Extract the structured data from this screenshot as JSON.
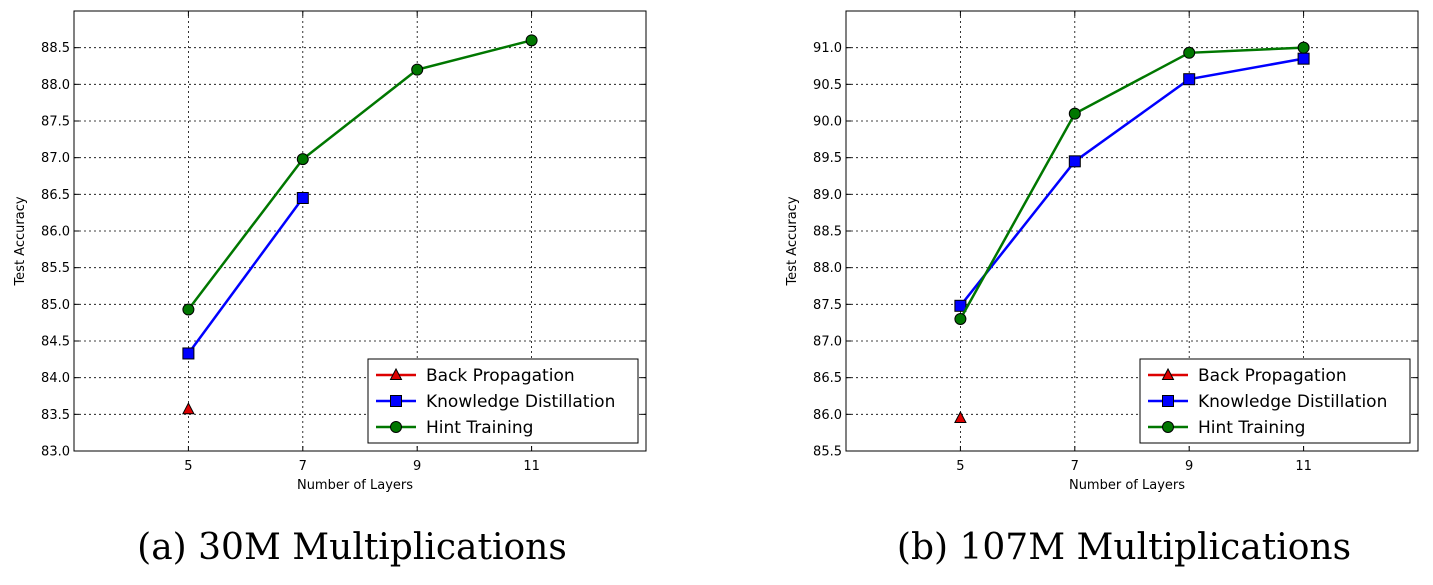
{
  "chart_data": [
    {
      "type": "line",
      "caption": "(a) 30M Multiplications",
      "xlabel": "Number of Layers",
      "ylabel": "Test Accuracy",
      "x_ticks": [
        5,
        7,
        9,
        11
      ],
      "xlim": [
        3,
        13
      ],
      "ylim": [
        83.0,
        89.0
      ],
      "y_ticks": [
        83.0,
        83.5,
        84.0,
        84.5,
        85.0,
        85.5,
        86.0,
        86.5,
        87.0,
        87.5,
        88.0,
        88.5
      ],
      "y_tick_labels": [
        "83.0",
        "83.5",
        "84.0",
        "84.5",
        "85.0",
        "85.5",
        "86.0",
        "86.5",
        "87.0",
        "87.5",
        "88.0",
        "88.5"
      ],
      "grid": true,
      "legend_position": "bottom-right",
      "series": [
        {
          "name": "Back Propagation",
          "color": "#dd0000",
          "marker": "triangle",
          "x": [
            5
          ],
          "y": [
            83.57
          ]
        },
        {
          "name": "Knowledge Distillation",
          "color": "#0000ff",
          "marker": "square",
          "x": [
            5,
            7
          ],
          "y": [
            84.33,
            86.45
          ]
        },
        {
          "name": "Hint Training",
          "color": "#007700",
          "marker": "circle",
          "x": [
            5,
            7,
            9,
            11
          ],
          "y": [
            84.93,
            86.98,
            88.2,
            88.6
          ]
        }
      ]
    },
    {
      "type": "line",
      "caption": "(b) 107M Multiplications",
      "xlabel": "Number of Layers",
      "ylabel": "Test Accuracy",
      "x_ticks": [
        5,
        7,
        9,
        11
      ],
      "xlim": [
        3,
        13
      ],
      "ylim": [
        85.5,
        91.5
      ],
      "y_ticks": [
        85.5,
        86.0,
        86.5,
        87.0,
        87.5,
        88.0,
        88.5,
        89.0,
        89.5,
        90.0,
        90.5,
        91.0
      ],
      "y_tick_labels": [
        "85.5",
        "86.0",
        "86.5",
        "87.0",
        "87.5",
        "88.0",
        "88.5",
        "89.0",
        "89.5",
        "90.0",
        "90.5",
        "91.0"
      ],
      "grid": true,
      "legend_position": "bottom-right",
      "series": [
        {
          "name": "Back Propagation",
          "color": "#dd0000",
          "marker": "triangle",
          "x": [
            5
          ],
          "y": [
            85.95
          ]
        },
        {
          "name": "Knowledge Distillation",
          "color": "#0000ff",
          "marker": "square",
          "x": [
            5,
            7,
            9,
            11
          ],
          "y": [
            87.48,
            89.45,
            90.57,
            90.85
          ]
        },
        {
          "name": "Hint Training",
          "color": "#007700",
          "marker": "circle",
          "x": [
            5,
            7,
            9,
            11
          ],
          "y": [
            87.3,
            90.1,
            90.93,
            91.0
          ]
        }
      ]
    }
  ]
}
